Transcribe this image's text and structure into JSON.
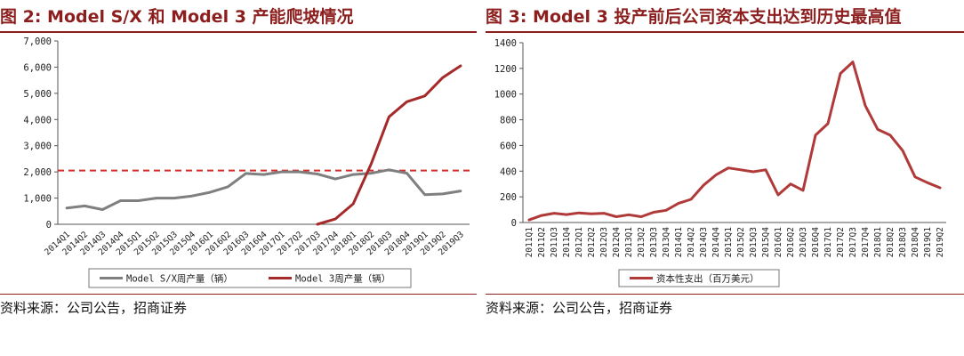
{
  "left": {
    "title": "图 2:  Model S/X 和 Model 3 产能爬坡情况",
    "source": "资料来源：公司公告，招商证券",
    "chart_data": {
      "type": "line",
      "categories": [
        "2014Q1",
        "2014Q2",
        "2014Q3",
        "2014Q4",
        "2015Q1",
        "2015Q2",
        "2015Q3",
        "2015Q4",
        "2016Q1",
        "2016Q2",
        "2016Q3",
        "2016Q4",
        "2017Q1",
        "2017Q2",
        "2017Q3",
        "2017Q4",
        "2018Q1",
        "2018Q2",
        "2018Q3",
        "2018Q4",
        "2019Q1",
        "2019Q2",
        "2019Q3"
      ],
      "y_ticks": [
        "0",
        "1,000",
        "2,000",
        "3,000",
        "4,000",
        "5,000",
        "6,000",
        "7,000"
      ],
      "ylim": [
        0,
        7000
      ],
      "grid": false,
      "legend_position": "bottom",
      "reference_line": {
        "value": 2050,
        "color": "#d42a2a",
        "style": "dashed"
      },
      "series": [
        {
          "name": "Model S/X周产量（辆）",
          "color": "#7f7f7f",
          "values": [
            620,
            700,
            560,
            900,
            900,
            1000,
            1000,
            1080,
            1220,
            1430,
            1940,
            1900,
            2000,
            2000,
            1920,
            1730,
            1900,
            1950,
            2080,
            1950,
            1130,
            1160,
            1270
          ]
        },
        {
          "name": "Model 3周产量（辆）",
          "color": "#a52a2a",
          "start_index": 14,
          "values": [
            null,
            null,
            null,
            null,
            null,
            null,
            null,
            null,
            null,
            null,
            null,
            null,
            null,
            null,
            0,
            200,
            780,
            2300,
            4100,
            4680,
            4900,
            5600,
            6050
          ]
        }
      ]
    }
  },
  "right": {
    "title": "图 3:  Model 3 投产前后公司资本支出达到历史最高值",
    "source": "资料来源：公司公告，招商证券",
    "chart_data": {
      "type": "line",
      "categories": [
        "2011Q1",
        "2011Q2",
        "2011Q3",
        "2011Q4",
        "2012Q1",
        "2012Q2",
        "2012Q3",
        "2012Q4",
        "2013Q1",
        "2013Q2",
        "2013Q3",
        "2013Q4",
        "2014Q1",
        "2014Q2",
        "2014Q3",
        "2014Q4",
        "2015Q1",
        "2015Q2",
        "2015Q3",
        "2015Q4",
        "2016Q1",
        "2016Q2",
        "2016Q3",
        "2016Q4",
        "2017Q1",
        "2017Q2",
        "2017Q3",
        "2017Q4",
        "2018Q1",
        "2018Q2",
        "2018Q3",
        "2018Q4",
        "2019Q1",
        "2019Q2"
      ],
      "y_ticks": [
        "0",
        "200",
        "400",
        "600",
        "800",
        "1000",
        "1200",
        "1400"
      ],
      "ylim": [
        0,
        1400
      ],
      "grid": false,
      "legend_position": "bottom",
      "series": [
        {
          "name": "资本性支出（百万美元）",
          "color": "#b03a3a",
          "values": [
            20,
            55,
            72,
            62,
            75,
            68,
            72,
            45,
            60,
            45,
            80,
            95,
            150,
            180,
            290,
            370,
            425,
            410,
            395,
            410,
            215,
            300,
            250,
            680,
            770,
            1160,
            1250,
            910,
            725,
            680,
            560,
            355,
            310,
            270
          ]
        }
      ]
    }
  }
}
